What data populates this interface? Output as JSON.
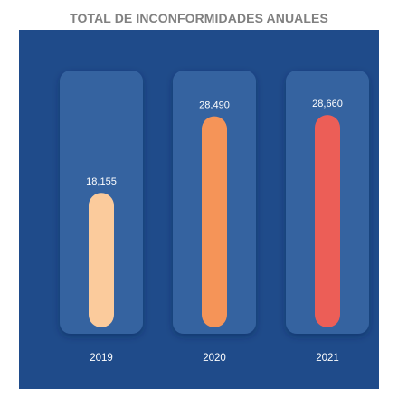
{
  "chart_data": {
    "type": "bar",
    "title": "TOTAL DE INCONFORMIDADES ANUALES",
    "categories": [
      "2019",
      "2020",
      "2021"
    ],
    "values": [
      18155,
      28490,
      28660
    ],
    "value_labels": [
      "18,155",
      "28,490",
      "28,660"
    ],
    "ylim": [
      0,
      31000
    ],
    "grid": false,
    "colors": {
      "background": "#1f4b8a",
      "track": "#3563a0",
      "bars": [
        "#fbcb9c",
        "#f59458",
        "#ec5e57"
      ]
    }
  }
}
